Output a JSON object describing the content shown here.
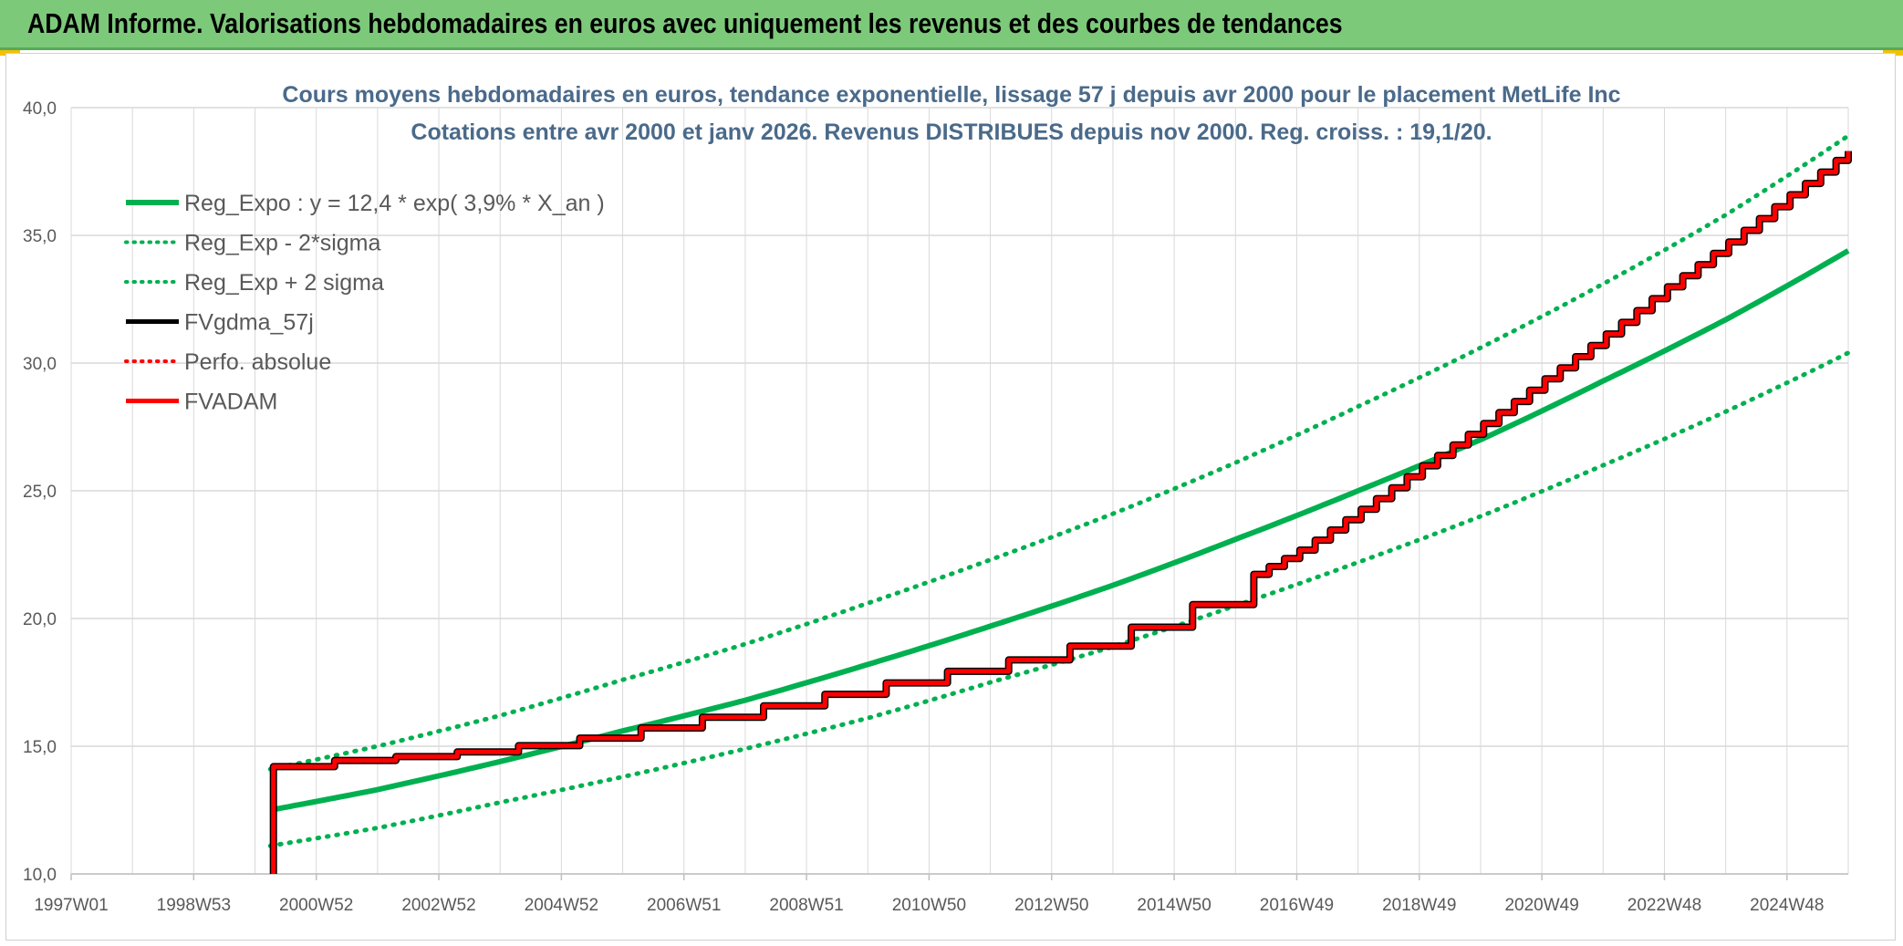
{
  "header": {
    "title": "ADAM Informe. Valorisations hebdomadaires en euros avec uniquement les revenus et des courbes de tendances"
  },
  "chart_data": {
    "type": "line",
    "title": "Cours moyens hebdomadaires en euros, tendance exponentielle, lissage 57 j depuis avr 2000 pour le placement MetLife Inc",
    "subtitle": "Cotations entre avr 2000 et janv 2026. Revenus DISTRIBUES depuis nov 2000. Reg. croiss. : 19,1/20.",
    "xlabel": "",
    "ylabel": "",
    "x_ticks": [
      "1997W01",
      "1998W53",
      "2000W52",
      "2002W52",
      "2004W52",
      "2006W51",
      "2008W51",
      "2010W50",
      "2012W50",
      "2014W50",
      "2016W49",
      "2018W49",
      "2020W49",
      "2022W48",
      "2024W48"
    ],
    "x_tick_years": [
      1997.0,
      1999.0,
      2001.0,
      2003.0,
      2005.0,
      2007.0,
      2009.0,
      2011.0,
      2013.0,
      2015.0,
      2017.0,
      2019.0,
      2021.0,
      2023.0,
      2025.0
    ],
    "xlim": [
      1997.0,
      2026.0
    ],
    "y_ticks": [
      "10,0",
      "15,0",
      "20,0",
      "25,0",
      "30,0",
      "35,0",
      "40,0"
    ],
    "ylim": [
      10,
      40
    ],
    "grid": true,
    "legend_position": "top-left",
    "colors": {
      "green": "#00b050",
      "red": "#ff0000",
      "black": "#000000",
      "grid": "#d9d9d9",
      "banner": "#7cc97a"
    },
    "series": [
      {
        "name": "Reg_Expo : y = 12,4 * exp( 3,9% *  X_an )",
        "style": "solid-thick",
        "color": "#00b050",
        "x": [
          2000.25,
          2002.0,
          2004.0,
          2006.0,
          2008.0,
          2010.0,
          2012.0,
          2014.0,
          2016.0,
          2018.0,
          2020.0,
          2022.0,
          2024.0,
          2026.0
        ],
        "values": [
          12.5,
          13.3,
          14.4,
          15.6,
          16.8,
          18.2,
          19.7,
          21.3,
          23.1,
          25.0,
          27.0,
          29.3,
          31.7,
          34.4
        ]
      },
      {
        "name": "Reg_Exp - 2*sigma",
        "style": "dotted",
        "color": "#00b050",
        "x": [
          2000.25,
          2002.0,
          2004.0,
          2006.0,
          2008.0,
          2010.0,
          2012.0,
          2014.0,
          2016.0,
          2018.0,
          2020.0,
          2022.0,
          2024.0,
          2026.0
        ],
        "values": [
          11.1,
          11.8,
          12.8,
          13.8,
          14.9,
          16.1,
          17.5,
          18.9,
          20.5,
          22.2,
          24.0,
          26.0,
          28.1,
          30.4
        ]
      },
      {
        "name": "Reg_Exp + 2 sigma",
        "style": "dotted",
        "color": "#00b050",
        "x": [
          2000.25,
          2002.0,
          2004.0,
          2006.0,
          2008.0,
          2010.0,
          2012.0,
          2014.0,
          2016.0,
          2018.0,
          2020.0,
          2022.0,
          2024.0,
          2026.0
        ],
        "values": [
          14.1,
          15.0,
          16.2,
          17.6,
          19.0,
          20.6,
          22.3,
          24.1,
          26.1,
          28.3,
          30.6,
          33.1,
          35.8,
          38.9
        ]
      },
      {
        "name": "FVgdma_57j",
        "style": "solid",
        "color": "#000000",
        "x": [
          2000.3,
          2000.3,
          2001.0,
          2003.0,
          2005.0,
          2007.0,
          2009.0,
          2011.0,
          2013.0,
          2015.0,
          2017.0,
          2019.0,
          2021.0,
          2023.0,
          2025.0,
          2026.0
        ],
        "values": [
          10.0,
          14.2,
          14.4,
          14.7,
          15.2,
          16.0,
          16.9,
          17.8,
          18.7,
          20.2,
          22.6,
          25.9,
          29.3,
          32.9,
          36.5,
          38.3
        ]
      },
      {
        "name": "Perfo. absolue",
        "style": "dotted",
        "color": "#ff0000",
        "x": [],
        "values": []
      },
      {
        "name": "FVADAM",
        "style": "solid-thick-stepped",
        "color": "#ff0000",
        "x": [
          2000.3,
          2000.3,
          2001.0,
          2003.0,
          2005.0,
          2007.0,
          2009.0,
          2011.0,
          2013.0,
          2015.0,
          2017.0,
          2019.0,
          2021.0,
          2023.0,
          2025.0,
          2026.0
        ],
        "values": [
          10.0,
          14.2,
          14.4,
          14.7,
          15.2,
          16.0,
          16.9,
          17.8,
          18.7,
          20.2,
          22.6,
          25.9,
          29.3,
          32.9,
          36.5,
          38.3
        ]
      }
    ]
  }
}
